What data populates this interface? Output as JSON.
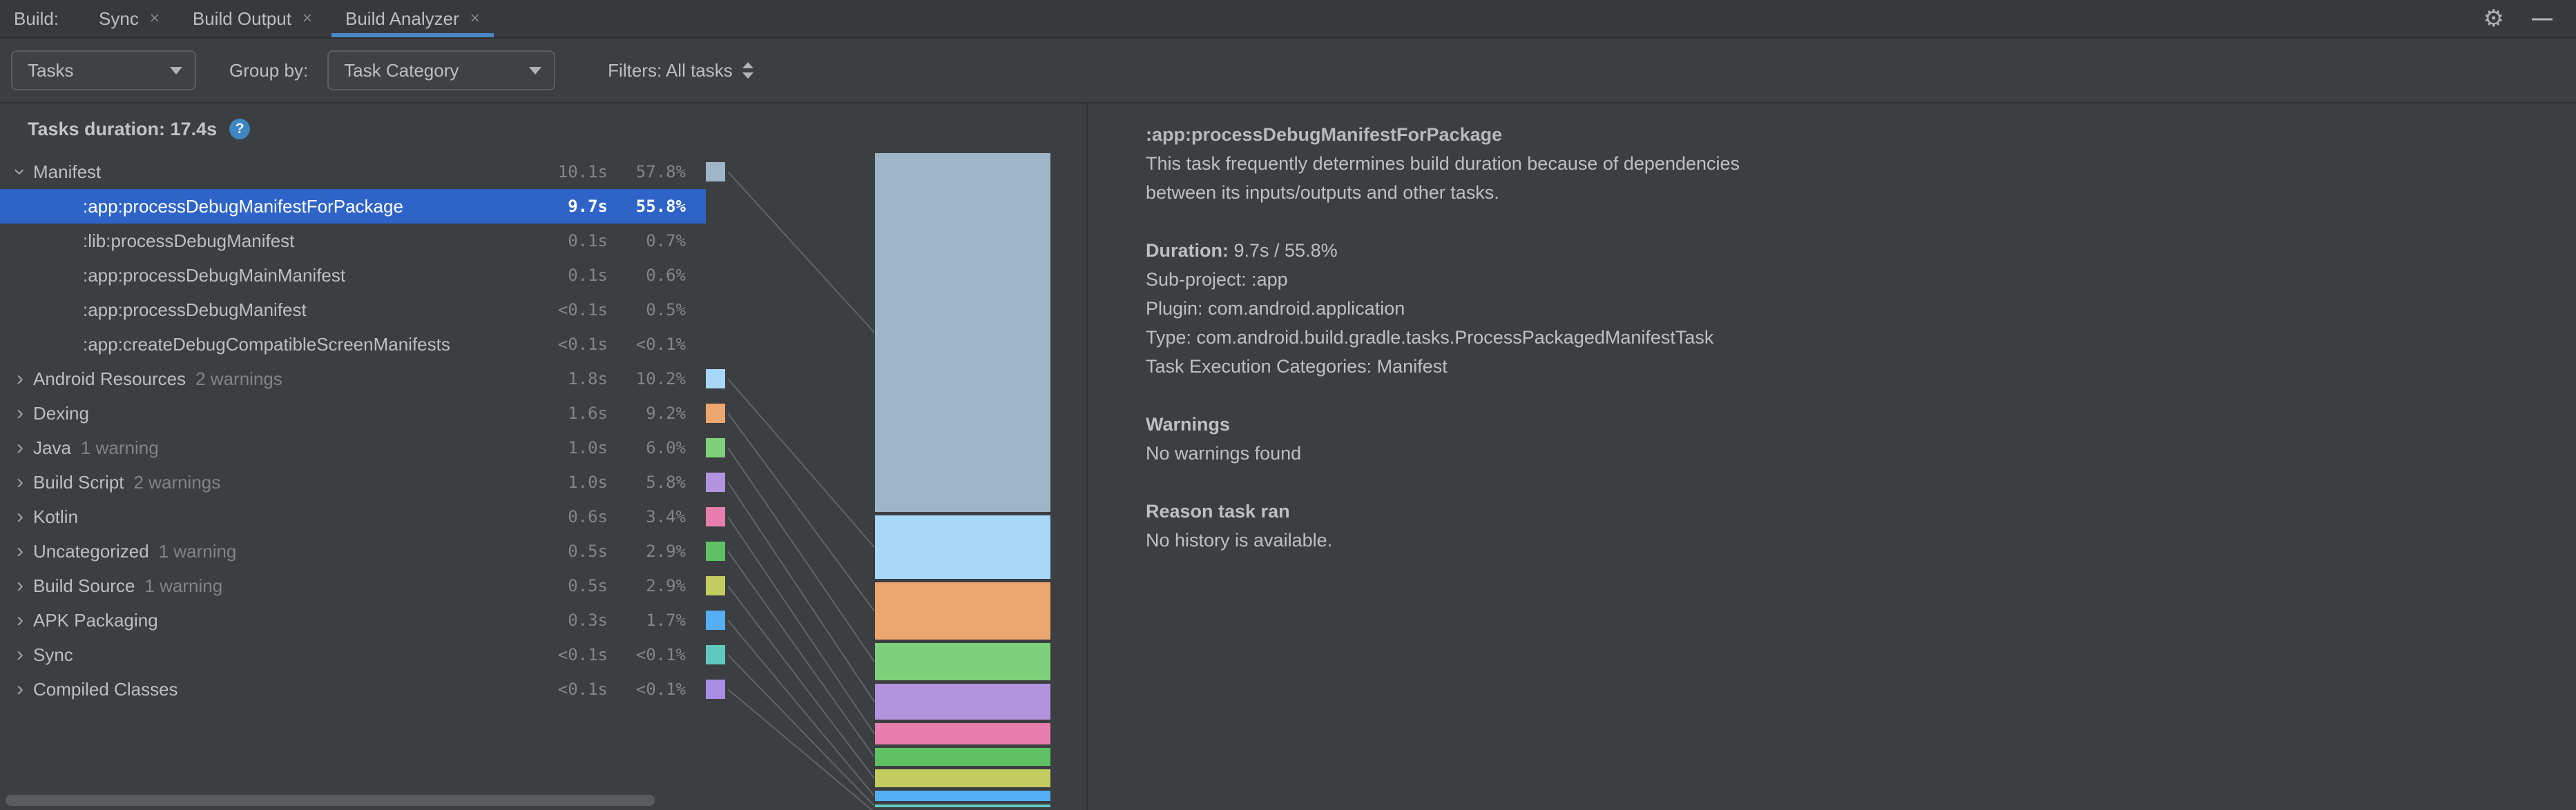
{
  "theme": {
    "background": "#3c3f41",
    "tabbar_background": "#37393b",
    "accent_underline": "#4a88c7",
    "selection_blue": "#2e64c8",
    "dim_text": "#7f8488",
    "main_text": "#bcbec0"
  },
  "icons": {
    "settings_gear": "⚙",
    "minimize": "—",
    "tab_close": "×",
    "tree_chevron": "›",
    "help": "?"
  },
  "window": {
    "build_label": "Build:",
    "tabs": [
      {
        "label": "Sync",
        "active": false
      },
      {
        "label": "Build Output",
        "active": false
      },
      {
        "label": "Build Analyzer",
        "active": true
      }
    ]
  },
  "toolbar": {
    "view_selector": "Tasks",
    "group_by_label": "Group by:",
    "group_selector": "Task Category",
    "filters_label": "Filters: All tasks"
  },
  "tree": {
    "header_label": "Tasks duration: 17.4s",
    "rows": [
      {
        "label": "Manifest",
        "duration": "10.1s",
        "percent": "57.8%",
        "level": 0,
        "expanded": true,
        "category_index": 0
      },
      {
        "label": ":app:processDebugManifestForPackage",
        "duration": "9.7s",
        "percent": "55.8%",
        "level": 1,
        "selected": true
      },
      {
        "label": ":lib:processDebugManifest",
        "duration": "0.1s",
        "percent": "0.7%",
        "level": 1
      },
      {
        "label": ":app:processDebugMainManifest",
        "duration": "0.1s",
        "percent": "0.6%",
        "level": 1
      },
      {
        "label": ":app:processDebugManifest",
        "duration": "<0.1s",
        "percent": "0.5%",
        "level": 1
      },
      {
        "label": ":app:createDebugCompatibleScreenManifests",
        "duration": "<0.1s",
        "percent": "<0.1%",
        "level": 1
      },
      {
        "label": "Android Resources",
        "warning": "2 warnings",
        "duration": "1.8s",
        "percent": "10.2%",
        "level": 0,
        "category_index": 1
      },
      {
        "label": "Dexing",
        "duration": "1.6s",
        "percent": "9.2%",
        "level": 0,
        "category_index": 2
      },
      {
        "label": "Java",
        "warning": "1 warning",
        "duration": "1.0s",
        "percent": "6.0%",
        "level": 0,
        "category_index": 3
      },
      {
        "label": "Build Script",
        "warning": "2 warnings",
        "duration": "1.0s",
        "percent": "5.8%",
        "level": 0,
        "category_index": 4
      },
      {
        "label": "Kotlin",
        "duration": "0.6s",
        "percent": "3.4%",
        "level": 0,
        "category_index": 5
      },
      {
        "label": "Uncategorized",
        "warning": "1 warning",
        "duration": "0.5s",
        "percent": "2.9%",
        "level": 0,
        "category_index": 6
      },
      {
        "label": "Build Source",
        "warning": "1 warning",
        "duration": "0.5s",
        "percent": "2.9%",
        "level": 0,
        "category_index": 7
      },
      {
        "label": "APK Packaging",
        "duration": "0.3s",
        "percent": "1.7%",
        "level": 0,
        "category_index": 8
      },
      {
        "label": "Sync",
        "duration": "<0.1s",
        "percent": "<0.1%",
        "level": 0,
        "category_index": 9
      },
      {
        "label": "Compiled Classes",
        "duration": "<0.1s",
        "percent": "<0.1%",
        "level": 0,
        "category_index": 10
      }
    ]
  },
  "chart_data": {
    "type": "bar",
    "stacked": true,
    "title": "Tasks duration: 17.4s",
    "total_duration": "17.4s",
    "categories": [
      "Manifest",
      "Android Resources",
      "Dexing",
      "Java",
      "Build Script",
      "Kotlin",
      "Uncategorized",
      "Build Source",
      "APK Packaging",
      "Sync",
      "Compiled Classes"
    ],
    "series": [
      {
        "name": "duration_seconds",
        "values": [
          10.1,
          1.8,
          1.6,
          1.0,
          1.0,
          0.6,
          0.5,
          0.5,
          0.3,
          0.05,
          0.05
        ]
      },
      {
        "name": "percent_of_build",
        "values": [
          57.8,
          10.2,
          9.2,
          6.0,
          5.8,
          3.4,
          2.9,
          2.9,
          1.7,
          0.1,
          0.1
        ]
      }
    ],
    "colors": [
      "#9fb6c9",
      "#a7d7f9",
      "#eda66e",
      "#7ed07a",
      "#b293dd",
      "#e77fae",
      "#5ec163",
      "#c3cc5e",
      "#56aef5",
      "#5fc9c0",
      "#a98ee8"
    ],
    "striped": [
      "Sync",
      "Compiled Classes"
    ],
    "legend_position": "left-tree",
    "ylim": [
      0,
      100
    ]
  },
  "details": {
    "title": ":app:processDebugManifestForPackage",
    "description_lines": {
      "0": "This task frequently determines build duration because of dependencies",
      "1": "between its inputs/outputs and other tasks."
    },
    "duration_label": "Duration:",
    "duration_value": "9.7s / 55.8%",
    "subproject": "Sub-project: :app",
    "plugin": "Plugin: com.android.application",
    "type": "Type: com.android.build.gradle.tasks.ProcessPackagedManifestTask",
    "execution_categories": "Task Execution Categories: Manifest",
    "warnings_header": "Warnings",
    "warnings_text": "No warnings found",
    "reason_header": "Reason task ran",
    "reason_text": "No history is available."
  }
}
